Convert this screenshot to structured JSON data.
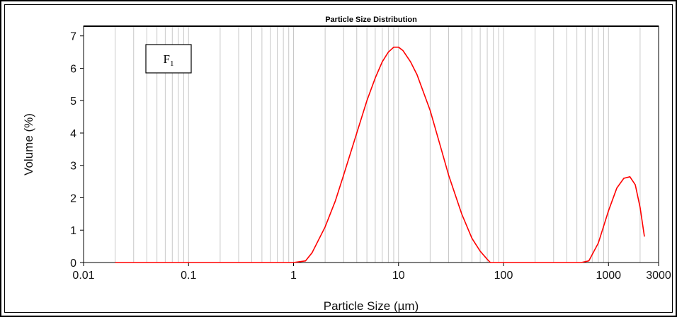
{
  "chart_data": {
    "type": "line",
    "title": "Particle Size Distribution",
    "xlabel": "Particle Size (µm)",
    "ylabel": "Volume (%)",
    "x_scale": "log",
    "xlim": [
      0.01,
      3000
    ],
    "ylim": [
      0,
      7.3
    ],
    "x_ticks": [
      0.01,
      0.1,
      1,
      10,
      100,
      1000,
      3000
    ],
    "x_tick_labels": [
      "0.01",
      "0.1",
      "1",
      "10",
      "100",
      "1000",
      "3000"
    ],
    "y_ticks": [
      0,
      1,
      2,
      3,
      4,
      5,
      6,
      7
    ],
    "y_tick_labels": [
      "0",
      "1",
      "2",
      "3",
      "4",
      "5",
      "6",
      "7"
    ],
    "grid": "vertical log gridlines",
    "annotation": {
      "label": "F",
      "subscript": "1"
    },
    "series": [
      {
        "color": "#ff0000",
        "x": [
          0.02,
          0.1,
          0.5,
          1.0,
          1.3,
          1.5,
          2.0,
          2.5,
          3.0,
          4.0,
          5.0,
          6.0,
          7.0,
          8.0,
          9.0,
          10.0,
          11.0,
          13.0,
          15.0,
          20.0,
          25.0,
          30.0,
          40.0,
          50.0,
          60.0,
          70.0,
          75.0,
          100.0,
          300.0,
          550.0,
          650.0,
          800.0,
          1000.0,
          1200.0,
          1400.0,
          1600.0,
          1800.0,
          2000.0,
          2200.0
        ],
        "y": [
          0,
          0,
          0,
          0,
          0.05,
          0.3,
          1.1,
          1.9,
          2.7,
          4.0,
          5.0,
          5.7,
          6.2,
          6.5,
          6.65,
          6.65,
          6.55,
          6.2,
          5.8,
          4.7,
          3.6,
          2.7,
          1.5,
          0.75,
          0.35,
          0.1,
          0,
          0,
          0,
          0,
          0.05,
          0.6,
          1.6,
          2.3,
          2.6,
          2.65,
          2.4,
          1.7,
          0.8
        ]
      }
    ]
  }
}
